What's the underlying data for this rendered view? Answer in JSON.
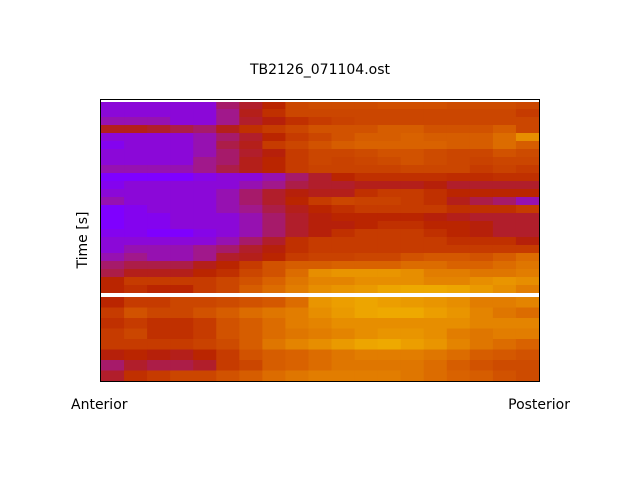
{
  "chart_data": {
    "type": "heatmap",
    "title": "TB2126_071104.ost",
    "ylabel": "Time [s]",
    "xlabel_left": "Anterior",
    "xlabel_right": "Posterior",
    "colormap": [
      "#7f00ff",
      "#a01890",
      "#b01e30",
      "#b82000",
      "#c84000",
      "#d86000",
      "#e89000",
      "#f0b000"
    ],
    "value_range": [
      0,
      1
    ],
    "separator_color": "#ffffff",
    "grid": false,
    "sections": [
      {
        "rows": [
          [
            0.05,
            0.05,
            0.05,
            0.05,
            0.05,
            0.2,
            0.3,
            0.45,
            0.6,
            0.62,
            0.62,
            0.62,
            0.64,
            0.64,
            0.64,
            0.62,
            0.62,
            0.62,
            0.6
          ],
          [
            0.05,
            0.05,
            0.05,
            0.05,
            0.05,
            0.15,
            0.35,
            0.5,
            0.6,
            0.6,
            0.6,
            0.6,
            0.6,
            0.6,
            0.6,
            0.6,
            0.6,
            0.6,
            0.55
          ],
          [
            0.1,
            0.1,
            0.1,
            0.05,
            0.05,
            0.15,
            0.3,
            0.4,
            0.5,
            0.55,
            0.58,
            0.6,
            0.6,
            0.6,
            0.6,
            0.6,
            0.6,
            0.6,
            0.6
          ],
          [
            0.35,
            0.35,
            0.3,
            0.25,
            0.2,
            0.35,
            0.5,
            0.55,
            0.6,
            0.65,
            0.65,
            0.65,
            0.7,
            0.7,
            0.65,
            0.65,
            0.65,
            0.7,
            0.6
          ],
          [
            0.05,
            0.05,
            0.05,
            0.05,
            0.1,
            0.2,
            0.3,
            0.45,
            0.55,
            0.6,
            0.65,
            0.7,
            0.7,
            0.72,
            0.7,
            0.7,
            0.7,
            0.75,
            0.85
          ],
          [
            0.02,
            0.05,
            0.05,
            0.05,
            0.1,
            0.25,
            0.35,
            0.55,
            0.6,
            0.65,
            0.7,
            0.72,
            0.72,
            0.72,
            0.72,
            0.7,
            0.7,
            0.75,
            0.7
          ],
          [
            0.05,
            0.05,
            0.05,
            0.05,
            0.1,
            0.2,
            0.3,
            0.4,
            0.55,
            0.6,
            0.6,
            0.62,
            0.65,
            0.65,
            0.62,
            0.6,
            0.6,
            0.65,
            0.62
          ],
          [
            0.05,
            0.05,
            0.05,
            0.05,
            0.15,
            0.2,
            0.35,
            0.45,
            0.55,
            0.6,
            0.58,
            0.6,
            0.62,
            0.65,
            0.62,
            0.6,
            0.58,
            0.6,
            0.6
          ],
          [
            0.1,
            0.1,
            0.1,
            0.1,
            0.15,
            0.25,
            0.35,
            0.45,
            0.55,
            0.58,
            0.58,
            0.58,
            0.58,
            0.6,
            0.6,
            0.6,
            0.55,
            0.58,
            0.55
          ],
          [
            0,
            0,
            0,
            0,
            0.03,
            0.05,
            0.05,
            0.1,
            0.2,
            0.3,
            0.45,
            0.5,
            0.5,
            0.5,
            0.5,
            0.48,
            0.48,
            0.5,
            0.5
          ],
          [
            0.02,
            0.05,
            0.05,
            0.05,
            0.05,
            0.05,
            0.1,
            0.15,
            0.25,
            0.3,
            0.3,
            0.35,
            0.35,
            0.35,
            0.4,
            0.3,
            0.3,
            0.3,
            0.3
          ],
          [
            0.05,
            0.05,
            0.05,
            0.05,
            0.05,
            0.1,
            0.2,
            0.3,
            0.4,
            0.35,
            0.35,
            0.5,
            0.55,
            0.55,
            0.5,
            0.45,
            0.45,
            0.45,
            0.45
          ],
          [
            0.1,
            0.05,
            0.05,
            0.05,
            0.05,
            0.1,
            0.2,
            0.3,
            0.45,
            0.55,
            0.6,
            0.58,
            0.58,
            0.55,
            0.5,
            0.35,
            0.25,
            0.2,
            0.1
          ],
          [
            0,
            0.02,
            0.05,
            0.05,
            0.05,
            0.1,
            0.15,
            0.25,
            0.35,
            0.45,
            0.5,
            0.55,
            0.55,
            0.55,
            0.55,
            0.5,
            0.5,
            0.5,
            0.55
          ],
          [
            0,
            0.02,
            0.02,
            0.05,
            0.05,
            0.05,
            0.1,
            0.2,
            0.3,
            0.4,
            0.45,
            0.45,
            0.45,
            0.45,
            0.4,
            0.35,
            0.3,
            0.3,
            0.3
          ],
          [
            0,
            0.02,
            0.02,
            0.05,
            0.05,
            0.05,
            0.1,
            0.2,
            0.3,
            0.4,
            0.4,
            0.45,
            0.5,
            0.5,
            0.45,
            0.45,
            0.4,
            0.3,
            0.3
          ],
          [
            0.02,
            0.02,
            0,
            0,
            0.03,
            0.05,
            0.1,
            0.2,
            0.3,
            0.4,
            0.5,
            0.55,
            0.55,
            0.55,
            0.5,
            0.45,
            0.4,
            0.3,
            0.3
          ],
          [
            0.05,
            0.05,
            0.05,
            0.05,
            0.05,
            0.1,
            0.2,
            0.3,
            0.5,
            0.55,
            0.55,
            0.55,
            0.55,
            0.55,
            0.55,
            0.5,
            0.5,
            0.5,
            0.4
          ],
          [
            0.05,
            0.1,
            0.1,
            0.1,
            0.15,
            0.2,
            0.3,
            0.4,
            0.5,
            0.55,
            0.55,
            0.55,
            0.55,
            0.55,
            0.55,
            0.55,
            0.55,
            0.55,
            0.55
          ],
          [
            0.1,
            0.15,
            0.1,
            0.1,
            0.15,
            0.3,
            0.35,
            0.45,
            0.55,
            0.58,
            0.58,
            0.6,
            0.6,
            0.65,
            0.68,
            0.68,
            0.65,
            0.7,
            0.75
          ],
          [
            0.2,
            0.25,
            0.25,
            0.25,
            0.35,
            0.45,
            0.55,
            0.65,
            0.7,
            0.7,
            0.72,
            0.72,
            0.72,
            0.75,
            0.75,
            0.72,
            0.72,
            0.75,
            0.78
          ],
          [
            0.25,
            0.35,
            0.35,
            0.35,
            0.45,
            0.5,
            0.6,
            0.65,
            0.75,
            0.85,
            0.88,
            0.88,
            0.88,
            0.85,
            0.8,
            0.8,
            0.78,
            0.78,
            0.8
          ],
          [
            0.45,
            0.55,
            0.55,
            0.55,
            0.55,
            0.6,
            0.65,
            0.72,
            0.78,
            0.82,
            0.82,
            0.85,
            0.85,
            0.85,
            0.82,
            0.82,
            0.85,
            0.88,
            0.85
          ],
          [
            0.45,
            0.5,
            0.45,
            0.45,
            0.55,
            0.6,
            0.7,
            0.75,
            0.8,
            0.85,
            0.88,
            0.9,
            0.95,
            0.97,
            0.97,
            0.95,
            0.9,
            0.85,
            0.8
          ]
        ]
      },
      {
        "rows": [
          [
            0.45,
            0.55,
            0.55,
            0.6,
            0.6,
            0.62,
            0.65,
            0.68,
            0.75,
            0.88,
            0.92,
            0.95,
            0.92,
            0.9,
            0.88,
            0.85,
            0.8,
            0.8,
            0.82
          ],
          [
            0.55,
            0.65,
            0.6,
            0.6,
            0.65,
            0.7,
            0.75,
            0.78,
            0.8,
            0.85,
            0.9,
            0.95,
            0.97,
            0.97,
            0.92,
            0.88,
            0.82,
            0.78,
            0.75
          ],
          [
            0.5,
            0.55,
            0.5,
            0.5,
            0.55,
            0.65,
            0.7,
            0.75,
            0.8,
            0.82,
            0.85,
            0.85,
            0.85,
            0.85,
            0.85,
            0.85,
            0.82,
            0.82,
            0.82
          ],
          [
            0.55,
            0.6,
            0.5,
            0.5,
            0.55,
            0.65,
            0.7,
            0.75,
            0.78,
            0.8,
            0.82,
            0.85,
            0.88,
            0.88,
            0.85,
            0.8,
            0.78,
            0.8,
            0.8
          ],
          [
            0.55,
            0.55,
            0.55,
            0.55,
            0.58,
            0.62,
            0.7,
            0.78,
            0.82,
            0.85,
            0.9,
            0.95,
            0.97,
            0.92,
            0.88,
            0.82,
            0.78,
            0.75,
            0.72
          ],
          [
            0.4,
            0.45,
            0.4,
            0.35,
            0.45,
            0.55,
            0.65,
            0.7,
            0.72,
            0.75,
            0.78,
            0.8,
            0.8,
            0.8,
            0.78,
            0.75,
            0.7,
            0.68,
            0.65
          ],
          [
            0.2,
            0.3,
            0.25,
            0.25,
            0.3,
            0.55,
            0.6,
            0.7,
            0.72,
            0.75,
            0.78,
            0.78,
            0.78,
            0.78,
            0.75,
            0.7,
            0.65,
            0.62,
            0.62
          ],
          [
            0.3,
            0.5,
            0.55,
            0.6,
            0.6,
            0.65,
            0.7,
            0.75,
            0.78,
            0.8,
            0.8,
            0.8,
            0.8,
            0.78,
            0.75,
            0.72,
            0.7,
            0.65,
            0.62
          ]
        ]
      }
    ]
  }
}
